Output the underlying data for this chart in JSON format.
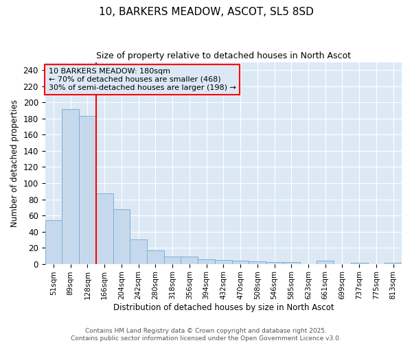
{
  "title_line1": "10, BARKERS MEADOW, ASCOT, SL5 8SD",
  "title_line2": "Size of property relative to detached houses in North Ascot",
  "xlabel": "Distribution of detached houses by size in North Ascot",
  "ylabel": "Number of detached properties",
  "categories": [
    "51sqm",
    "89sqm",
    "128sqm",
    "166sqm",
    "204sqm",
    "242sqm",
    "280sqm",
    "318sqm",
    "356sqm",
    "394sqm",
    "432sqm",
    "470sqm",
    "508sqm",
    "546sqm",
    "585sqm",
    "623sqm",
    "661sqm",
    "699sqm",
    "737sqm",
    "775sqm",
    "813sqm"
  ],
  "values": [
    54,
    192,
    183,
    87,
    68,
    30,
    17,
    9,
    9,
    6,
    5,
    4,
    3,
    2,
    2,
    0,
    4,
    0,
    1,
    0,
    1
  ],
  "bar_color": "#c6d9ec",
  "bar_edgecolor": "#7bafd4",
  "redline_index": 2.5,
  "annotation_text": "10 BARKERS MEADOW: 180sqm\n← 70% of detached houses are smaller (468)\n30% of semi-detached houses are larger (198) →",
  "annotation_box_edgecolor": "red",
  "ylim": [
    0,
    250
  ],
  "yticks": [
    0,
    20,
    40,
    60,
    80,
    100,
    120,
    140,
    160,
    180,
    200,
    220,
    240
  ],
  "plot_bg_color": "#dce9f5",
  "fig_bg_color": "#ffffff",
  "footnote": "Contains HM Land Registry data © Crown copyright and database right 2025.\nContains public sector information licensed under the Open Government Licence v3.0.",
  "grid_color": "#ffffff",
  "figsize": [
    6.0,
    5.0
  ],
  "dpi": 100
}
